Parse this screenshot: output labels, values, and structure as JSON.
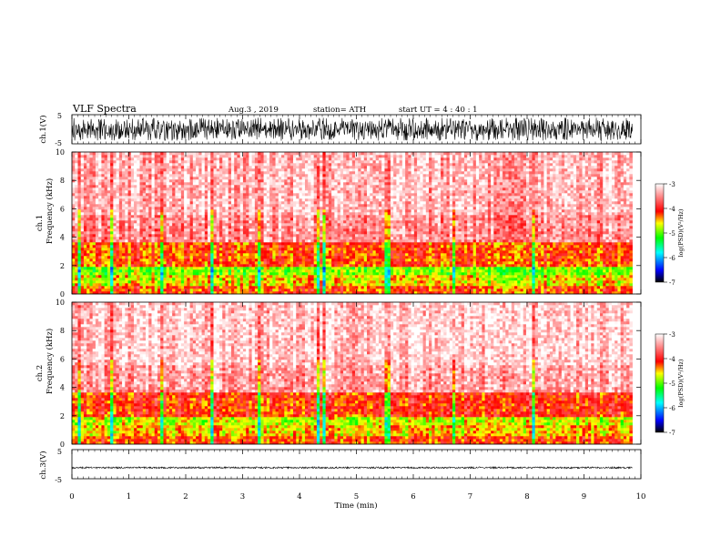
{
  "header": {
    "title": "VLF  Spectra",
    "date": "Aug.3  , 2019",
    "station": "station= ATH",
    "start_ut": "start  UT  =   4  : 40 : 1"
  },
  "colors": {
    "ink": "#000000",
    "colormap": [
      "#000000",
      "#0000ff",
      "#00ffff",
      "#00ff00",
      "#ffff00",
      "#ff0000",
      "#ffffff"
    ]
  },
  "chart_data": [
    {
      "type": "line",
      "name": "ch1-waveform",
      "ylabel": "ch.1(V)",
      "ylim": [
        -5,
        5
      ],
      "yticks": [
        "5",
        "-5"
      ],
      "xlim": [
        0,
        9.85
      ],
      "description_values": {
        "amplitude_range_V": [
          -4.5,
          4.5
        ]
      }
    },
    {
      "type": "heatmap",
      "name": "ch1-spectrogram",
      "ylabel": "Frequency  (kHz)",
      "channel_label": "ch.1",
      "ylim": [
        0,
        10
      ],
      "yticks": [
        "0",
        "2",
        "4",
        "6",
        "8",
        "10"
      ],
      "xlim": [
        0,
        9.85
      ],
      "colorbar": {
        "label": "log(PSD)(V²/Hz)",
        "range": [
          -7,
          -3
        ],
        "ticks": [
          "-3",
          "-4",
          "-5",
          "-6",
          "-7"
        ]
      },
      "bands_kHz": [
        {
          "from": 0.0,
          "to": 0.6,
          "level": -4.2
        },
        {
          "from": 0.6,
          "to": 1.3,
          "level": -4.6
        },
        {
          "from": 1.3,
          "to": 2.0,
          "level": -4.9
        },
        {
          "from": 2.0,
          "to": 3.6,
          "level": -4.2
        },
        {
          "from": 3.6,
          "to": 5.5,
          "level": -3.5
        },
        {
          "from": 5.5,
          "to": 10.0,
          "level": -3.3
        }
      ],
      "broadband_bursts_min": [
        0.15,
        0.7,
        1.6,
        2.45,
        3.3,
        4.35,
        4.45,
        5.5,
        5.55,
        6.7,
        8.1
      ]
    },
    {
      "type": "heatmap",
      "name": "ch2-spectrogram",
      "ylabel": "Frequency  (kHz)",
      "channel_label": "ch.2",
      "ylim": [
        0,
        10
      ],
      "yticks": [
        "0",
        "2",
        "4",
        "6",
        "8",
        "10"
      ],
      "xlim": [
        0,
        9.85
      ],
      "colorbar": {
        "label": "log(PSD)(V²/Hz)",
        "range": [
          -7,
          -3
        ],
        "ticks": [
          "-3",
          "-4",
          "-5",
          "-6",
          "-7"
        ]
      },
      "bands_kHz": [
        {
          "from": 0.0,
          "to": 0.6,
          "level": -4.2
        },
        {
          "from": 0.6,
          "to": 1.3,
          "level": -4.5
        },
        {
          "from": 1.3,
          "to": 2.0,
          "level": -4.7
        },
        {
          "from": 2.0,
          "to": 3.6,
          "level": -4.1
        },
        {
          "from": 3.6,
          "to": 5.5,
          "level": -3.4
        },
        {
          "from": 5.5,
          "to": 10.0,
          "level": -3.2
        }
      ],
      "broadband_bursts_min": [
        0.15,
        0.7,
        1.6,
        2.45,
        3.3,
        4.35,
        4.45,
        5.5,
        5.55,
        6.7,
        8.1
      ]
    },
    {
      "type": "line",
      "name": "ch3-waveform",
      "ylabel": "ch.3(V)",
      "ylim": [
        -5,
        5
      ],
      "yticks": [
        "5",
        "-5"
      ],
      "xlim": [
        0,
        9.85
      ],
      "description_values": {
        "mean_V": -1.2,
        "amplitude_range_V": [
          -1.5,
          -0.9
        ]
      }
    }
  ],
  "xaxis": {
    "label": "Time  (min)",
    "ticks": [
      "0",
      "1",
      "2",
      "3",
      "4",
      "5",
      "6",
      "7",
      "8",
      "9",
      "10"
    ],
    "range": [
      0,
      10
    ]
  }
}
